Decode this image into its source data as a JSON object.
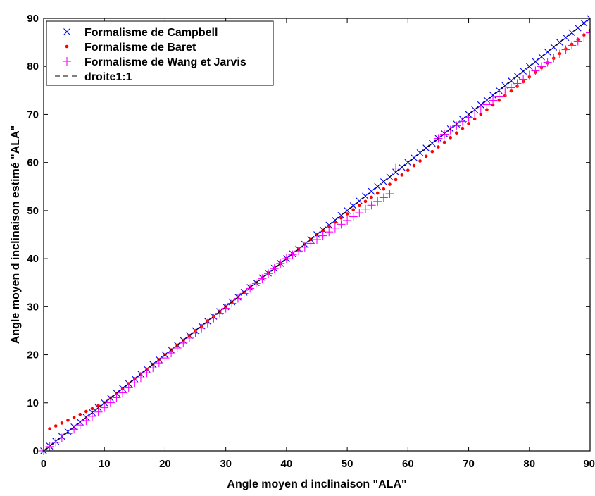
{
  "chart_data": {
    "type": "scatter",
    "title": "",
    "xlabel": "Angle moyen d inclinaison \"ALA\"",
    "ylabel": "Angle moyen d inclinaison estimé \"ALA\"",
    "xlim": [
      0,
      90
    ],
    "ylim": [
      0,
      90
    ],
    "x_ticks": [
      0,
      10,
      20,
      30,
      40,
      50,
      60,
      70,
      80,
      90
    ],
    "y_ticks": [
      0,
      10,
      20,
      30,
      40,
      50,
      60,
      70,
      80,
      90
    ],
    "grid": false,
    "legend_position": "top-left",
    "series": [
      {
        "name": "Formalisme de Campbell",
        "marker": "x",
        "color": "#0000ff",
        "x_range": [
          0,
          90
        ],
        "x_step": 1,
        "model": "campbell"
      },
      {
        "name": "Formalisme de Baret",
        "marker": "dot",
        "color": "#ff0000",
        "x_range": [
          1,
          90
        ],
        "x_step": 1,
        "model": "baret"
      },
      {
        "name": "Formalisme de Wang et Jarvis",
        "marker": "+",
        "color": "#ff00ff",
        "x_range": [
          0,
          90
        ],
        "x_step": 1,
        "model": "wang_jarvis",
        "gap": [
          58,
          65
        ]
      },
      {
        "name": "droite1:1",
        "marker": "dashed-line",
        "color": "#000000",
        "x": [
          0,
          90
        ],
        "y": [
          0,
          90
        ]
      }
    ]
  }
}
